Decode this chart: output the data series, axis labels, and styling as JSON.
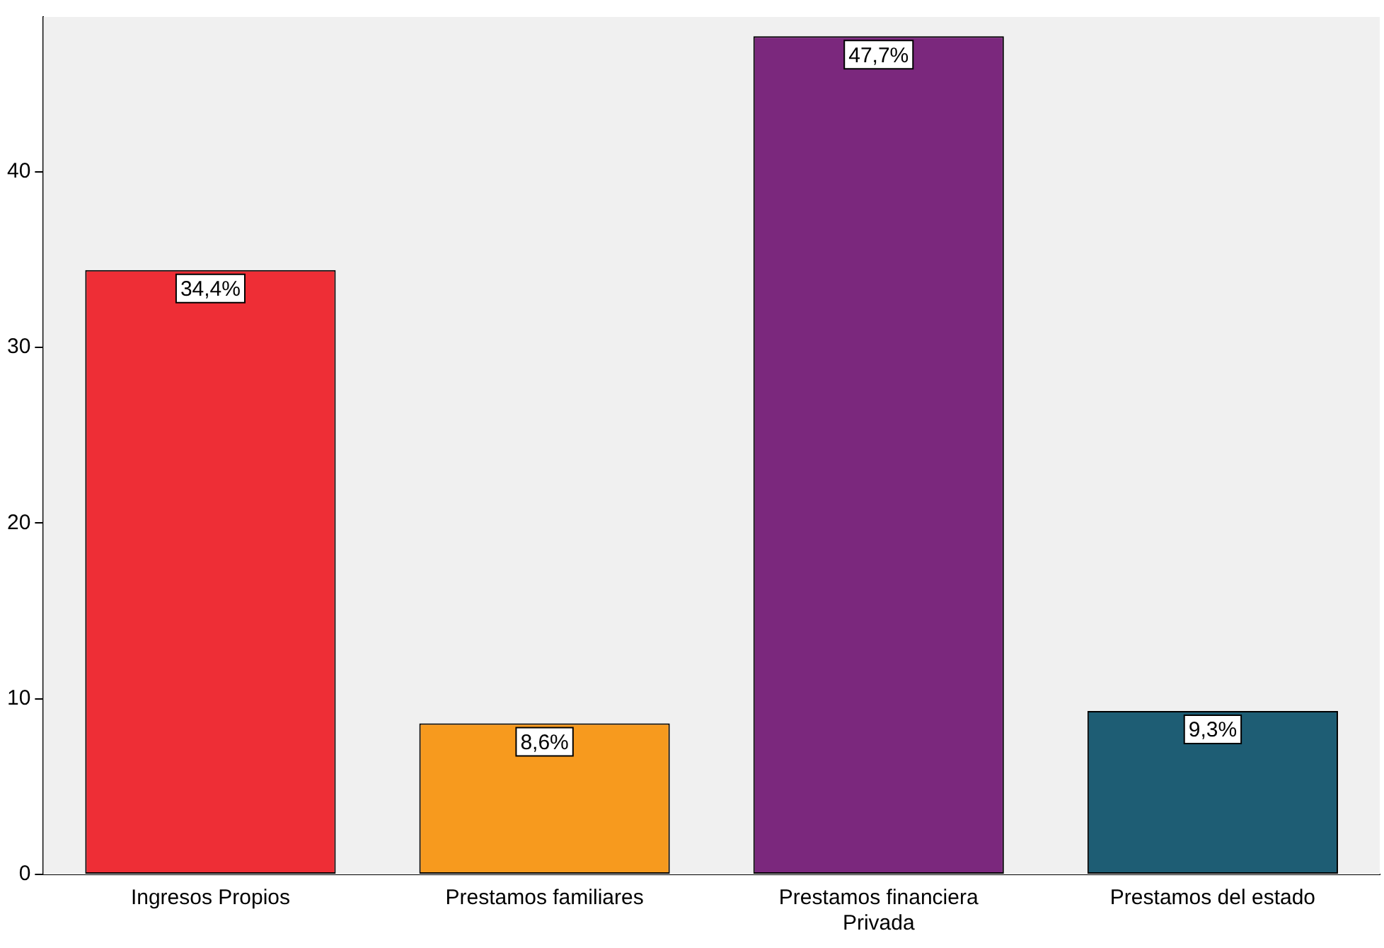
{
  "chart_data": {
    "type": "bar",
    "categories": [
      "Ingresos Propios",
      "Prestamos familiares",
      "Prestamos financiera Privada",
      "Prestamos del estado"
    ],
    "values": [
      34.4,
      8.6,
      47.7,
      9.3
    ],
    "colors": [
      "#ee2e36",
      "#f79a1e",
      "#7b287d",
      "#1e5d74"
    ],
    "value_labels": [
      "34,4%",
      "8,6%",
      "47,7%",
      "9,3%"
    ],
    "ylim": [
      0,
      48.8
    ],
    "yticks": [
      0,
      10,
      20,
      30,
      40
    ],
    "grid": false,
    "legend": false
  }
}
